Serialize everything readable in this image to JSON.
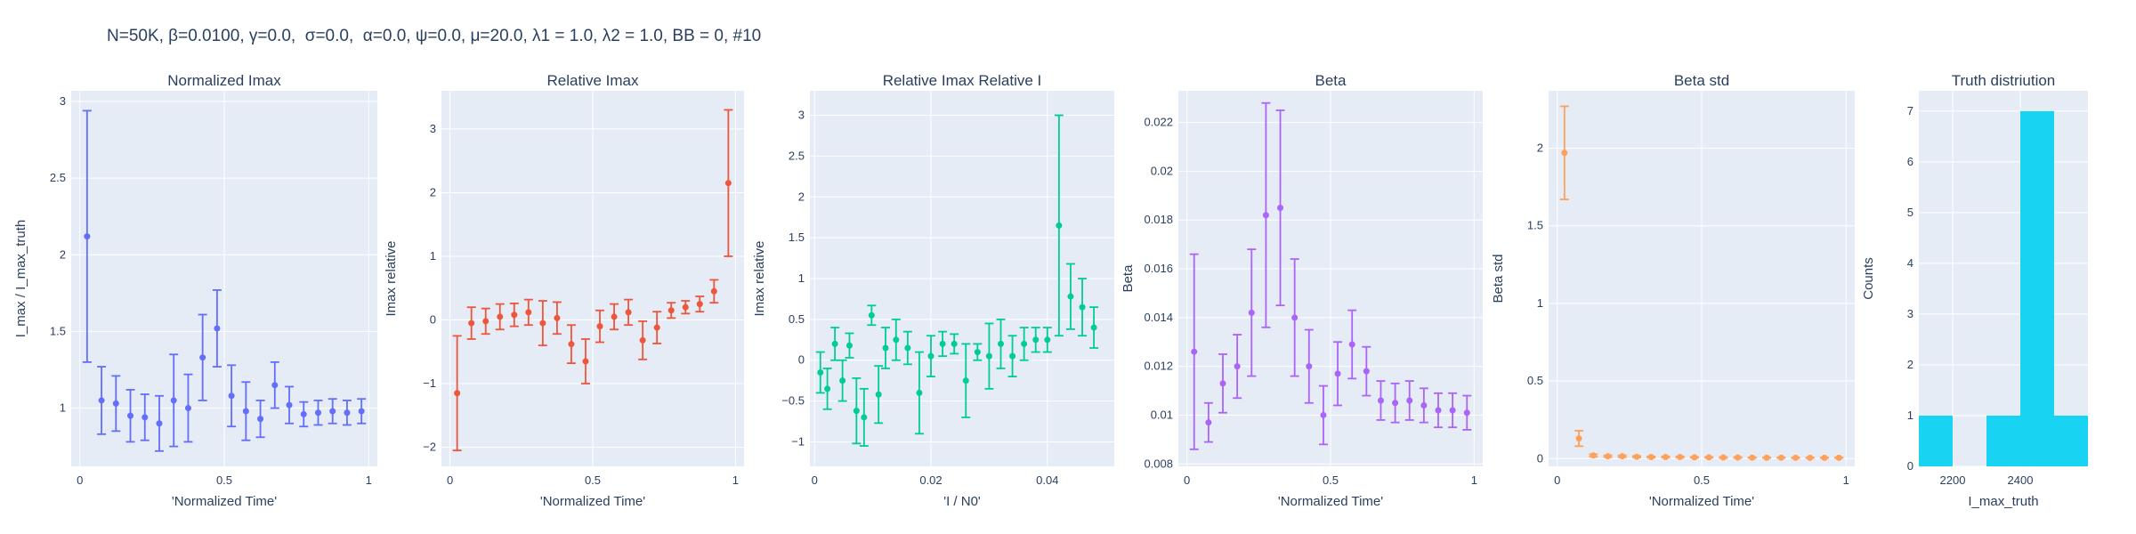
{
  "figure_title": "N=50K, β=0.0100, γ=0.0,  σ=0.0,  α=0.0, ψ=0.0, μ=20.0, λ1 = 1.0, λ2 = 1.0, BB = 0, #10",
  "chart_data": [
    {
      "type": "scatter",
      "title": "Normalized Imax",
      "xlabel": "'Normalized Time'",
      "ylabel": "I_max / I_max_truth",
      "color": "#636efa",
      "xlim": [
        -0.03,
        1.03
      ],
      "ylim": [
        0.62,
        3.07
      ],
      "xticks": [
        {
          "v": 0,
          "t": "0"
        },
        {
          "v": 0.5,
          "t": "0.5"
        },
        {
          "v": 1,
          "t": "1"
        }
      ],
      "yticks": [
        {
          "v": 1,
          "t": "1"
        },
        {
          "v": 1.5,
          "t": "1.5"
        },
        {
          "v": 2,
          "t": "2"
        },
        {
          "v": 2.5,
          "t": "2.5"
        },
        {
          "v": 3,
          "t": "3"
        }
      ],
      "x": [
        0.025,
        0.075,
        0.125,
        0.175,
        0.225,
        0.275,
        0.325,
        0.375,
        0.425,
        0.475,
        0.525,
        0.575,
        0.625,
        0.675,
        0.725,
        0.775,
        0.825,
        0.875,
        0.925,
        0.975
      ],
      "y": [
        2.12,
        1.05,
        1.03,
        0.95,
        0.94,
        0.9,
        1.05,
        1.0,
        1.33,
        1.52,
        1.08,
        0.98,
        0.93,
        1.15,
        1.02,
        0.96,
        0.97,
        0.98,
        0.97,
        0.98
      ],
      "err": [
        0.82,
        0.22,
        0.18,
        0.17,
        0.15,
        0.18,
        0.3,
        0.22,
        0.28,
        0.25,
        0.2,
        0.19,
        0.12,
        0.15,
        0.12,
        0.08,
        0.08,
        0.08,
        0.08,
        0.08
      ]
    },
    {
      "type": "scatter",
      "title": "Relative Imax",
      "xlabel": "'Normalized Time'",
      "ylabel": "Imax relative",
      "color": "#ef553b",
      "xlim": [
        -0.03,
        1.03
      ],
      "ylim": [
        -2.3,
        3.6
      ],
      "xticks": [
        {
          "v": 0,
          "t": "0"
        },
        {
          "v": 0.5,
          "t": "0.5"
        },
        {
          "v": 1,
          "t": "1"
        }
      ],
      "yticks": [
        {
          "v": -2,
          "t": "−2"
        },
        {
          "v": -1,
          "t": "−1"
        },
        {
          "v": 0,
          "t": "0"
        },
        {
          "v": 1,
          "t": "1"
        },
        {
          "v": 2,
          "t": "2"
        },
        {
          "v": 3,
          "t": "3"
        }
      ],
      "x": [
        0.025,
        0.075,
        0.125,
        0.175,
        0.225,
        0.275,
        0.325,
        0.375,
        0.425,
        0.475,
        0.525,
        0.575,
        0.625,
        0.675,
        0.725,
        0.775,
        0.825,
        0.875,
        0.925,
        0.975
      ],
      "y": [
        -1.15,
        -0.05,
        -0.02,
        0.05,
        0.08,
        0.12,
        -0.05,
        0.03,
        -0.38,
        -0.65,
        -0.1,
        0.05,
        0.12,
        -0.32,
        -0.12,
        0.15,
        0.2,
        0.25,
        0.45,
        2.15
      ],
      "err": [
        0.9,
        0.25,
        0.2,
        0.2,
        0.18,
        0.2,
        0.35,
        0.25,
        0.3,
        0.35,
        0.25,
        0.2,
        0.2,
        0.3,
        0.25,
        0.12,
        0.1,
        0.12,
        0.18,
        1.15
      ]
    },
    {
      "type": "scatter",
      "title": "Relative Imax Relative I",
      "xlabel": "'I / N0'",
      "ylabel": "Imax relative",
      "color": "#00cc96",
      "xlim": [
        -0.0008,
        0.0515
      ],
      "ylim": [
        -1.3,
        3.3
      ],
      "xticks": [
        {
          "v": 0,
          "t": "0"
        },
        {
          "v": 0.02,
          "t": "0.02"
        },
        {
          "v": 0.04,
          "t": "0.04"
        }
      ],
      "yticks": [
        {
          "v": -1,
          "t": "−1"
        },
        {
          "v": -0.5,
          "t": "−0.5"
        },
        {
          "v": 0,
          "t": "0"
        },
        {
          "v": 0.5,
          "t": "0.5"
        },
        {
          "v": 1,
          "t": "1"
        },
        {
          "v": 1.5,
          "t": "1.5"
        },
        {
          "v": 2,
          "t": "2"
        },
        {
          "v": 2.5,
          "t": "2.5"
        },
        {
          "v": 3,
          "t": "3"
        }
      ],
      "x": [
        0.001,
        0.0022,
        0.0035,
        0.0048,
        0.006,
        0.0072,
        0.0085,
        0.0098,
        0.011,
        0.0122,
        0.014,
        0.016,
        0.018,
        0.02,
        0.022,
        0.024,
        0.026,
        0.028,
        0.03,
        0.032,
        0.034,
        0.036,
        0.038,
        0.04,
        0.042,
        0.044,
        0.046,
        0.048
      ],
      "y": [
        -0.15,
        -0.35,
        0.2,
        -0.25,
        0.18,
        -0.62,
        -0.7,
        0.55,
        -0.42,
        0.15,
        0.25,
        0.15,
        -0.4,
        0.05,
        0.2,
        0.2,
        -0.25,
        0.1,
        0.05,
        0.2,
        0.05,
        0.2,
        0.25,
        0.25,
        1.65,
        0.78,
        0.65,
        0.4
      ],
      "err": [
        0.25,
        0.25,
        0.2,
        0.25,
        0.15,
        0.4,
        0.35,
        0.12,
        0.35,
        0.25,
        0.25,
        0.2,
        0.5,
        0.25,
        0.15,
        0.12,
        0.45,
        0.1,
        0.4,
        0.3,
        0.25,
        0.2,
        0.15,
        0.15,
        1.35,
        0.4,
        0.35,
        0.25
      ]
    },
    {
      "type": "scatter",
      "title": "Beta",
      "xlabel": "'Normalized Time'",
      "ylabel": "Beta",
      "color": "#ab63fa",
      "xlim": [
        -0.03,
        1.03
      ],
      "ylim": [
        0.0079,
        0.0233
      ],
      "xticks": [
        {
          "v": 0,
          "t": "0"
        },
        {
          "v": 0.5,
          "t": "0.5"
        },
        {
          "v": 1,
          "t": "1"
        }
      ],
      "yticks": [
        {
          "v": 0.008,
          "t": "0.008"
        },
        {
          "v": 0.01,
          "t": "0.01"
        },
        {
          "v": 0.012,
          "t": "0.012"
        },
        {
          "v": 0.014,
          "t": "0.014"
        },
        {
          "v": 0.016,
          "t": "0.016"
        },
        {
          "v": 0.018,
          "t": "0.018"
        },
        {
          "v": 0.02,
          "t": "0.02"
        },
        {
          "v": 0.022,
          "t": "0.022"
        }
      ],
      "x": [
        0.025,
        0.075,
        0.125,
        0.175,
        0.225,
        0.275,
        0.325,
        0.375,
        0.425,
        0.475,
        0.525,
        0.575,
        0.625,
        0.675,
        0.725,
        0.775,
        0.825,
        0.875,
        0.925,
        0.975
      ],
      "y": [
        0.0126,
        0.0097,
        0.0113,
        0.012,
        0.0142,
        0.0182,
        0.0185,
        0.014,
        0.012,
        0.01,
        0.0117,
        0.0129,
        0.0118,
        0.0106,
        0.0105,
        0.0106,
        0.0104,
        0.0102,
        0.0102,
        0.0101
      ],
      "err": [
        0.004,
        0.0008,
        0.0012,
        0.0013,
        0.0026,
        0.0046,
        0.004,
        0.0024,
        0.0015,
        0.0012,
        0.0013,
        0.0014,
        0.001,
        0.0008,
        0.0008,
        0.0008,
        0.0007,
        0.0007,
        0.0007,
        0.0007
      ]
    },
    {
      "type": "scatter",
      "title": "Beta std",
      "xlabel": "'Normalized Time'",
      "ylabel": "Beta std",
      "color": "#ffa15a",
      "xlim": [
        -0.03,
        1.03
      ],
      "ylim": [
        -0.05,
        2.37
      ],
      "xticks": [
        {
          "v": 0,
          "t": "0"
        },
        {
          "v": 0.5,
          "t": "0.5"
        },
        {
          "v": 1,
          "t": "1"
        }
      ],
      "yticks": [
        {
          "v": 0,
          "t": "0"
        },
        {
          "v": 0.5,
          "t": "0.5"
        },
        {
          "v": 1,
          "t": "1"
        },
        {
          "v": 1.5,
          "t": "1.5"
        },
        {
          "v": 2,
          "t": "2"
        }
      ],
      "x": [
        0.025,
        0.075,
        0.125,
        0.175,
        0.225,
        0.275,
        0.325,
        0.375,
        0.425,
        0.475,
        0.525,
        0.575,
        0.625,
        0.675,
        0.725,
        0.775,
        0.825,
        0.875,
        0.925,
        0.975
      ],
      "y": [
        1.97,
        0.13,
        0.02,
        0.015,
        0.015,
        0.012,
        0.01,
        0.01,
        0.01,
        0.008,
        0.008,
        0.007,
        0.007,
        0.006,
        0.006,
        0.006,
        0.005,
        0.005,
        0.005,
        0.005
      ],
      "err": [
        0.3,
        0.05,
        0.008,
        0.006,
        0.006,
        0.005,
        0.004,
        0.004,
        0.004,
        0.003,
        0.003,
        0.003,
        0.003,
        0.002,
        0.002,
        0.002,
        0.002,
        0.002,
        0.002,
        0.002
      ]
    },
    {
      "type": "bar",
      "title": "Truth distriution",
      "xlabel": "I_max_truth",
      "ylabel": "Counts",
      "color": "#19d3f3",
      "xlim": [
        2100,
        2600
      ],
      "ylim": [
        0,
        7.4
      ],
      "xticks": [
        {
          "v": 2200,
          "t": "2200"
        },
        {
          "v": 2400,
          "t": "2400"
        }
      ],
      "yticks": [
        {
          "v": 0,
          "t": "0"
        },
        {
          "v": 1,
          "t": "1"
        },
        {
          "v": 2,
          "t": "2"
        },
        {
          "v": 3,
          "t": "3"
        },
        {
          "v": 4,
          "t": "4"
        },
        {
          "v": 5,
          "t": "5"
        },
        {
          "v": 6,
          "t": "6"
        },
        {
          "v": 7,
          "t": "7"
        }
      ],
      "bins": [
        [
          2100,
          2200
        ],
        [
          2200,
          2300
        ],
        [
          2300,
          2400
        ],
        [
          2400,
          2500
        ],
        [
          2500,
          2600
        ]
      ],
      "values": [
        1,
        0,
        1,
        7,
        1
      ]
    }
  ]
}
